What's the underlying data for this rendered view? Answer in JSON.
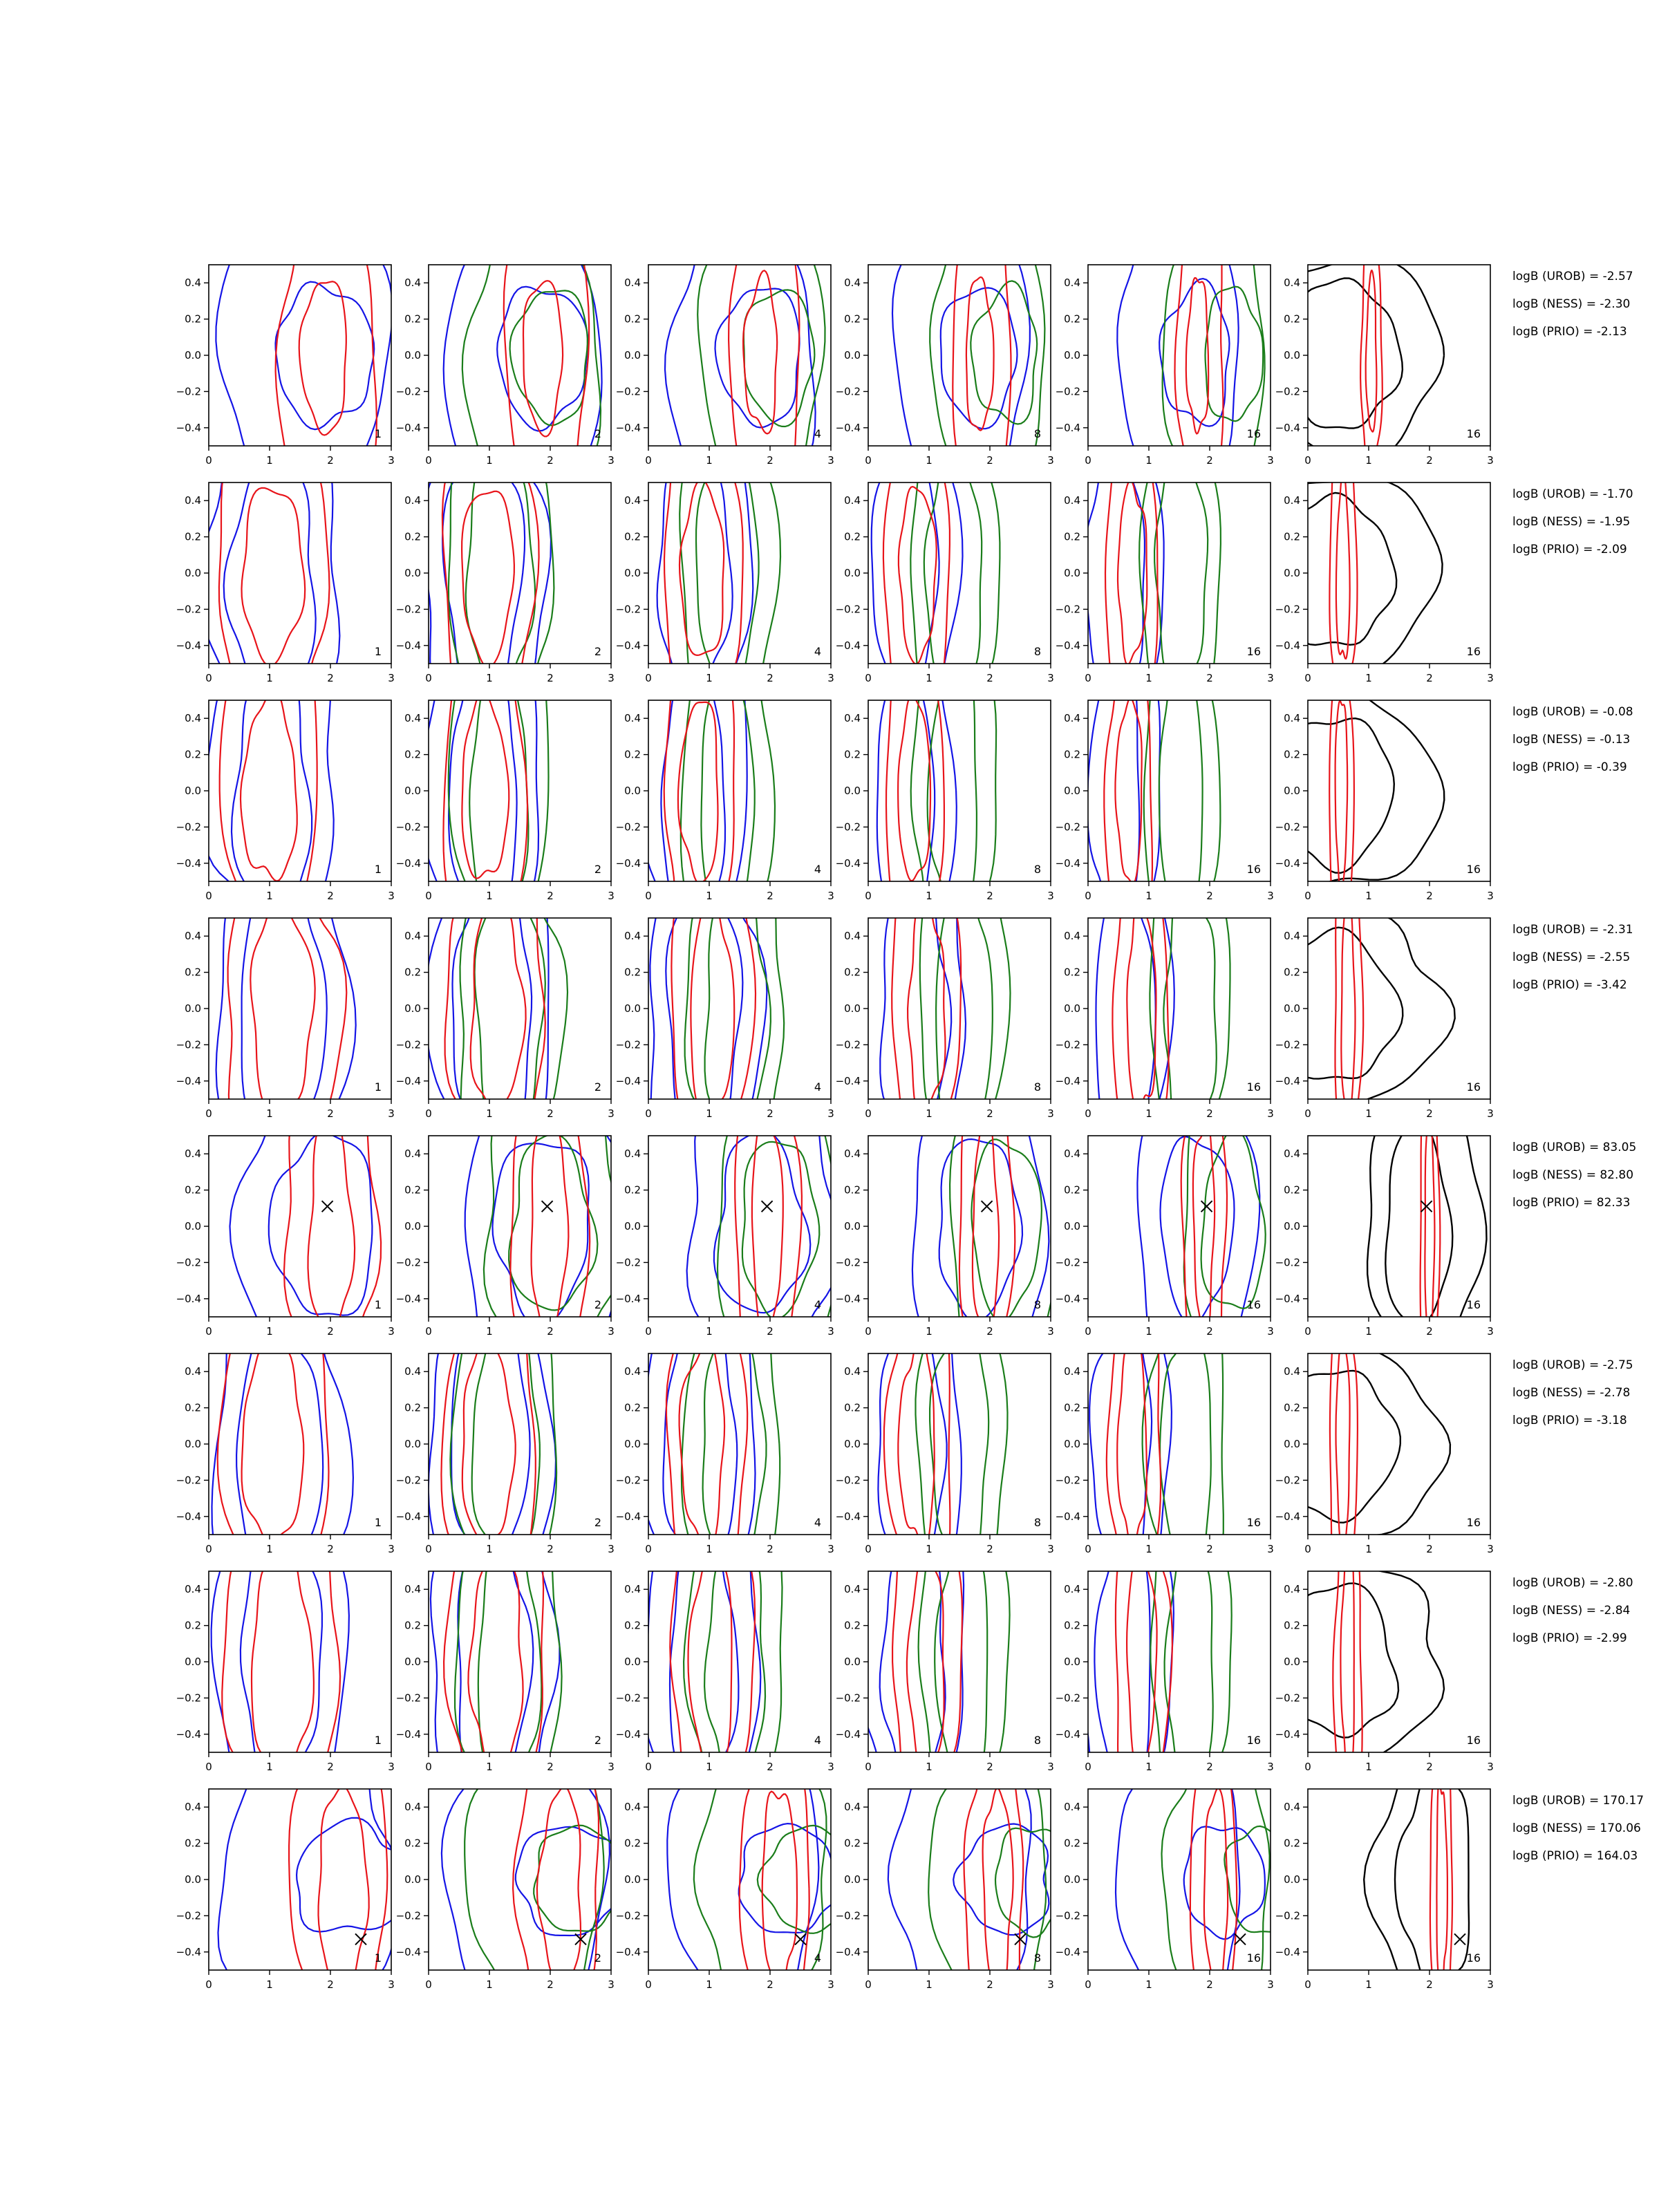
{
  "chart_data": {
    "type": "contour",
    "xlim": [
      0,
      3
    ],
    "ylim": [
      -0.5,
      0.5
    ],
    "xticks": [
      "0",
      "1",
      "2",
      "3"
    ],
    "yticks": [
      "0.4",
      "0.2",
      "0.0",
      "−0.2",
      "−0.4"
    ],
    "columns": [
      "1",
      "2",
      "4",
      "8",
      "16",
      "16"
    ],
    "series_colors": {
      "red": "#e8141a",
      "green": "#1a7d1a",
      "blue": "#1414e6",
      "black": "#000000"
    },
    "rows": [
      {
        "logB": [
          "logB (UROB) = -2.57",
          "logB (NESS) = -2.30",
          "logB (PRIO) = -2.13"
        ],
        "marker": null,
        "red": [
          [
            1.95,
            0.0,
            0.8,
            0.95
          ],
          [
            1.9,
            0.0,
            0.38,
            0.42
          ]
        ],
        "blue": [
          [
            1.6,
            0.0,
            1.4,
            0.85
          ],
          [
            1.9,
            0.0,
            0.8,
            0.38
          ]
        ],
        "black": [
          0.6,
          0.0,
          1.6,
          0.55
        ]
      },
      {
        "logB": [
          "logB (UROB) = -1.70",
          "logB (NESS) = -1.95",
          "logB (PRIO) = -2.09"
        ],
        "marker": null,
        "red": [
          [
            1.05,
            0.0,
            0.9,
            0.9
          ],
          [
            1.05,
            0.0,
            0.5,
            0.48
          ]
        ],
        "blue": [
          [
            1.05,
            0.0,
            1.1,
            0.95
          ],
          [
            1.05,
            0.0,
            0.7,
            0.68
          ]
        ],
        "black": [
          0.45,
          0.0,
          1.7,
          0.55
        ]
      },
      {
        "logB": [
          "logB (UROB) = -0.08",
          "logB (NESS) = -0.13",
          "logB (PRIO) = -0.39"
        ],
        "marker": null,
        "red": [
          [
            1.0,
            0.0,
            0.8,
            0.92
          ],
          [
            1.0,
            0.0,
            0.45,
            0.5
          ]
        ],
        "blue": [
          [
            1.05,
            0.0,
            1.05,
            0.95
          ],
          [
            1.05,
            0.0,
            0.6,
            0.75
          ]
        ],
        "black": [
          0.45,
          0.0,
          1.7,
          0.55
        ]
      },
      {
        "logB": [
          "logB (UROB) = -2.31",
          "logB (NESS) = -2.55",
          "logB (PRIO) = -3.42"
        ],
        "marker": null,
        "red": [
          [
            1.2,
            0.0,
            0.95,
            0.9
          ],
          [
            1.2,
            0.0,
            0.5,
            0.58
          ]
        ],
        "blue": [
          [
            1.2,
            0.0,
            1.1,
            0.95
          ],
          [
            1.2,
            0.0,
            0.7,
            0.75
          ]
        ],
        "black": [
          0.5,
          0.0,
          1.7,
          0.55
        ]
      },
      {
        "logB": [
          "logB (UROB) = 83.05",
          "logB (NESS) = 82.80",
          "logB (PRIO) = 82.33"
        ],
        "marker": [
          1.95,
          0.11
        ],
        "red": [
          [
            2.0,
            0.0,
            0.75,
            0.9
          ],
          [
            2.0,
            0.0,
            0.35,
            0.6
          ]
        ],
        "blue": [
          [
            1.9,
            0.0,
            1.4,
            0.9
          ],
          [
            1.9,
            0.0,
            0.85,
            0.5
          ]
        ],
        "black": [
          1.9,
          0.0,
          0.95,
          0.75
        ]
      },
      {
        "logB": [
          "logB (UROB) = -2.75",
          "logB (NESS) = -2.78",
          "logB (PRIO) = -3.18"
        ],
        "marker": null,
        "red": [
          [
            1.1,
            0.0,
            0.9,
            0.9
          ],
          [
            1.05,
            0.0,
            0.5,
            0.55
          ]
        ],
        "blue": [
          [
            1.15,
            0.0,
            1.1,
            0.95
          ],
          [
            1.15,
            0.0,
            0.7,
            0.7
          ]
        ],
        "black": [
          0.5,
          0.0,
          1.7,
          0.55
        ]
      },
      {
        "logB": [
          "logB (UROB) = -2.80",
          "logB (NESS) = -2.84",
          "logB (PRIO) = -2.99"
        ],
        "marker": null,
        "red": [
          [
            1.2,
            0.0,
            0.95,
            0.92
          ],
          [
            1.2,
            0.0,
            0.5,
            0.6
          ]
        ],
        "blue": [
          [
            1.2,
            0.0,
            1.1,
            0.95
          ],
          [
            1.2,
            0.0,
            0.65,
            0.72
          ]
        ],
        "black": [
          0.5,
          0.0,
          1.7,
          0.55
        ]
      },
      {
        "logB": [
          "logB (UROB) = 170.17",
          "logB (NESS) = 170.06",
          "logB (PRIO) = 164.03"
        ],
        "marker": [
          2.5,
          -0.33
        ],
        "red": [
          [
            2.15,
            -0.05,
            0.8,
            0.85
          ],
          [
            2.2,
            -0.05,
            0.4,
            0.55
          ]
        ],
        "blue": [
          [
            1.65,
            0.0,
            1.45,
            0.78
          ],
          [
            2.35,
            0.0,
            0.95,
            0.3
          ]
        ],
        "black": [
          2.2,
          0.0,
          1.1,
          0.75
        ]
      }
    ]
  }
}
